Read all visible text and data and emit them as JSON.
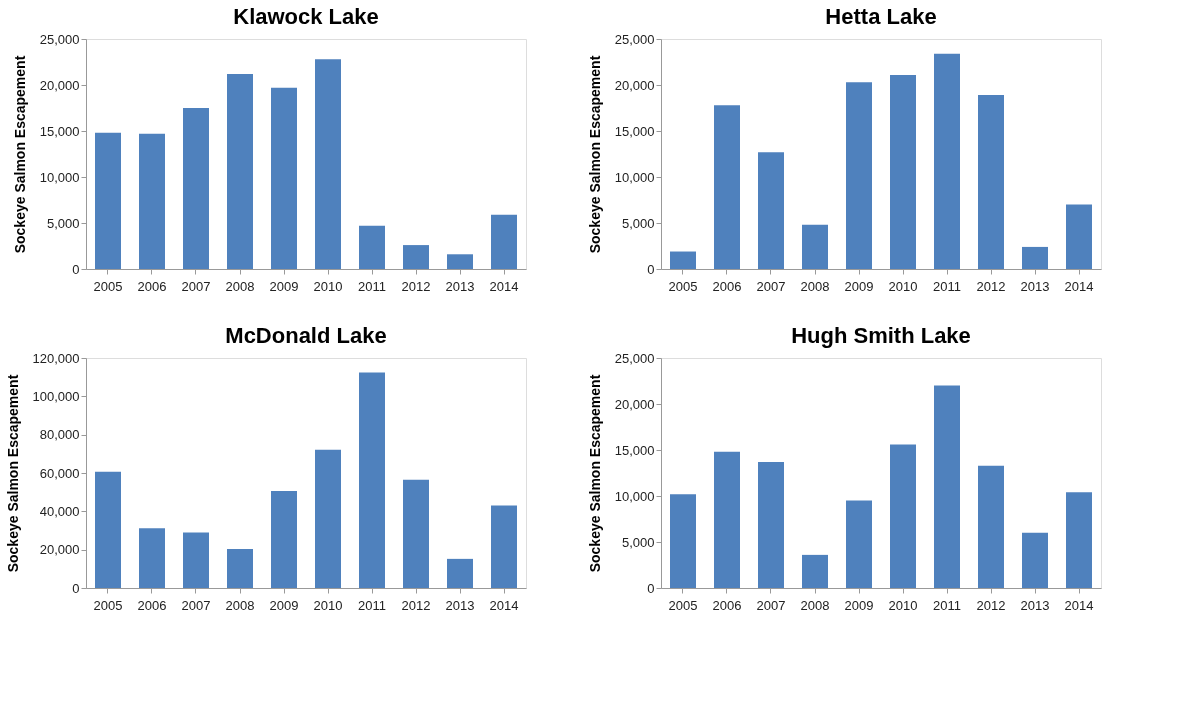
{
  "chart_data": [
    {
      "type": "bar",
      "title": "Klawock Lake",
      "ylabel": "Sockeye Salmon Escapement",
      "color": "#4f81bd",
      "grid": false,
      "categories": [
        "2005",
        "2006",
        "2007",
        "2008",
        "2009",
        "2010",
        "2011",
        "2012",
        "2013",
        "2014"
      ],
      "values": [
        14800,
        14700,
        17500,
        21200,
        19700,
        22800,
        4700,
        2600,
        1600,
        5900
      ],
      "ylim": [
        0,
        25000
      ],
      "yticks": [
        0,
        {
          "value": 5000,
          "label": "5,000"
        },
        {
          "value": 10000,
          "label": "10,000"
        },
        {
          "value": 15000,
          "label": "15,000"
        },
        {
          "value": 20000,
          "label": "20,000"
        },
        {
          "value": 25000,
          "label": "25,000"
        }
      ]
    },
    {
      "type": "bar",
      "title": "Hetta Lake",
      "ylabel": "Sockeye Salmon Escapement",
      "color": "#4f81bd",
      "grid": false,
      "categories": [
        "2005",
        "2006",
        "2007",
        "2008",
        "2009",
        "2010",
        "2011",
        "2012",
        "2013",
        "2014"
      ],
      "values": [
        1900,
        17800,
        12700,
        4800,
        20300,
        21100,
        23400,
        18900,
        2400,
        7000
      ],
      "ylim": [
        0,
        25000
      ],
      "yticks": [
        0,
        {
          "value": 5000,
          "label": "5,000"
        },
        {
          "value": 10000,
          "label": "10,000"
        },
        {
          "value": 15000,
          "label": "15,000"
        },
        {
          "value": 20000,
          "label": "20,000"
        },
        {
          "value": 25000,
          "label": "25,000"
        }
      ]
    },
    {
      "type": "bar",
      "title": "McDonald Lake",
      "ylabel": "Sockeye Salmon Escapement",
      "color": "#4f81bd",
      "grid": false,
      "categories": [
        "2005",
        "2006",
        "2007",
        "2008",
        "2009",
        "2010",
        "2011",
        "2012",
        "2013",
        "2014"
      ],
      "values": [
        60600,
        31200,
        28900,
        20400,
        50600,
        72100,
        112500,
        56500,
        15200,
        43100
      ],
      "ylim": [
        0,
        120000
      ],
      "yticks": [
        0,
        {
          "value": 20000,
          "label": "20,000"
        },
        {
          "value": 40000,
          "label": "40,000"
        },
        {
          "value": 60000,
          "label": "60,000"
        },
        {
          "value": 80000,
          "label": "80,000"
        },
        {
          "value": 100000,
          "label": "100,000"
        },
        {
          "value": 120000,
          "label": "120,000"
        }
      ]
    },
    {
      "type": "bar",
      "title": "Hugh Smith Lake",
      "ylabel": "Sockeye Salmon Escapement",
      "color": "#4f81bd",
      "grid": false,
      "categories": [
        "2005",
        "2006",
        "2007",
        "2008",
        "2009",
        "2010",
        "2011",
        "2012",
        "2013",
        "2014"
      ],
      "values": [
        10200,
        14800,
        13700,
        3600,
        9500,
        15600,
        22000,
        13300,
        6000,
        10400
      ],
      "ylim": [
        0,
        25000
      ],
      "yticks": [
        0,
        {
          "value": 5000,
          "label": "5,000"
        },
        {
          "value": 10000,
          "label": "10,000"
        },
        {
          "value": 15000,
          "label": "15,000"
        },
        {
          "value": 20000,
          "label": "20,000"
        },
        {
          "value": 25000,
          "label": "25,000"
        }
      ]
    }
  ]
}
